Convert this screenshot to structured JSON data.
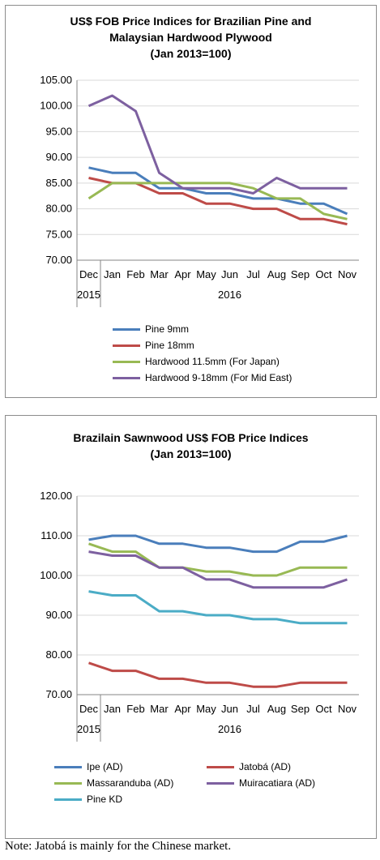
{
  "charts": [
    {
      "title_lines": [
        "US$ FOB Price Indices for Brazilian Pine and",
        "Malaysian Hardwood Plywood",
        "(Jan 2013=100)"
      ],
      "y_ticks": [
        "105.00",
        "100.00",
        "95.00",
        "90.00",
        "85.00",
        "80.00",
        "75.00",
        "70.00"
      ],
      "months": [
        "Dec",
        "Jan",
        "Feb",
        "Mar",
        "Apr",
        "May",
        "Jun",
        "Jul",
        "Aug",
        "Sep",
        "Oct",
        "Nov"
      ],
      "year_labels": [
        "2015",
        "2016"
      ]
    },
    {
      "title_lines": [
        "Brazilain Sawnwood US$ FOB Price Indices",
        "(Jan 2013=100)"
      ],
      "y_ticks": [
        "120.00",
        "110.00",
        "100.00",
        "90.00",
        "80.00",
        "70.00"
      ],
      "months": [
        "Dec",
        "Jan",
        "Feb",
        "Mar",
        "Apr",
        "May",
        "Jun",
        "Jul",
        "Aug",
        "Sep",
        "Oct",
        "Nov"
      ],
      "year_labels": [
        "2015",
        "2016"
      ]
    }
  ],
  "chart_data": [
    {
      "type": "line",
      "title": "US$ FOB Price Indices for Brazilian Pine and Malaysian Hardwood Plywood (Jan 2013=100)",
      "categories": [
        "Dec 2015",
        "Jan",
        "Feb",
        "Mar",
        "Apr",
        "May",
        "Jun",
        "Jul",
        "Aug",
        "Sep",
        "Oct",
        "Nov 2016"
      ],
      "ylim": [
        70,
        105
      ],
      "grid": true,
      "legend_position": "bottom",
      "series": [
        {
          "name": "Pine 9mm",
          "color": "#4a7ebb",
          "values": [
            88,
            87,
            87,
            84,
            84,
            83,
            83,
            82,
            82,
            81,
            81,
            79
          ]
        },
        {
          "name": "Pine 18mm",
          "color": "#be4b48",
          "values": [
            86,
            85,
            85,
            83,
            83,
            81,
            81,
            80,
            80,
            78,
            78,
            77
          ]
        },
        {
          "name": "Hardwood 11.5mm (For Japan)",
          "color": "#98b954",
          "values": [
            82,
            85,
            85,
            85,
            85,
            85,
            85,
            84,
            82,
            82,
            79,
            78
          ]
        },
        {
          "name": "Hardwood 9-18mm (For Mid East)",
          "color": "#7d60a0",
          "values": [
            100,
            102,
            99,
            87,
            84,
            84,
            84,
            83,
            86,
            84,
            84,
            84
          ]
        }
      ]
    },
    {
      "type": "line",
      "title": "Brazilain Sawnwood US$ FOB Price Indices (Jan 2013=100)",
      "categories": [
        "Dec 2015",
        "Jan",
        "Feb",
        "Mar",
        "Apr",
        "May",
        "Jun",
        "Jul",
        "Aug",
        "Sep",
        "Oct",
        "Nov 2016"
      ],
      "ylim": [
        70,
        120
      ],
      "grid": true,
      "legend_position": "bottom",
      "series": [
        {
          "name": "Ipe (AD)",
          "color": "#4a7ebb",
          "values": [
            109,
            110,
            110,
            108,
            108,
            107,
            107,
            106,
            106,
            108.5,
            108.5,
            110
          ]
        },
        {
          "name": "Jatobá (AD)",
          "color": "#be4b48",
          "values": [
            78,
            76,
            76,
            74,
            74,
            73,
            73,
            72,
            72,
            73,
            73,
            73
          ]
        },
        {
          "name": "Massaranduba (AD)",
          "color": "#98b954",
          "values": [
            108,
            106,
            106,
            102,
            102,
            101,
            101,
            100,
            100,
            102,
            102,
            102
          ]
        },
        {
          "name": "Muiracatiara (AD)",
          "color": "#7d60a0",
          "values": [
            106,
            105,
            105,
            102,
            102,
            99,
            99,
            97,
            97,
            97,
            97,
            99
          ]
        },
        {
          "name": "Pine KD",
          "color": "#4bacc6",
          "values": [
            96,
            95,
            95,
            91,
            91,
            90,
            90,
            89,
            89,
            88,
            88,
            88
          ]
        }
      ]
    }
  ],
  "note": "Note: Jatobá is mainly for the Chinese market."
}
